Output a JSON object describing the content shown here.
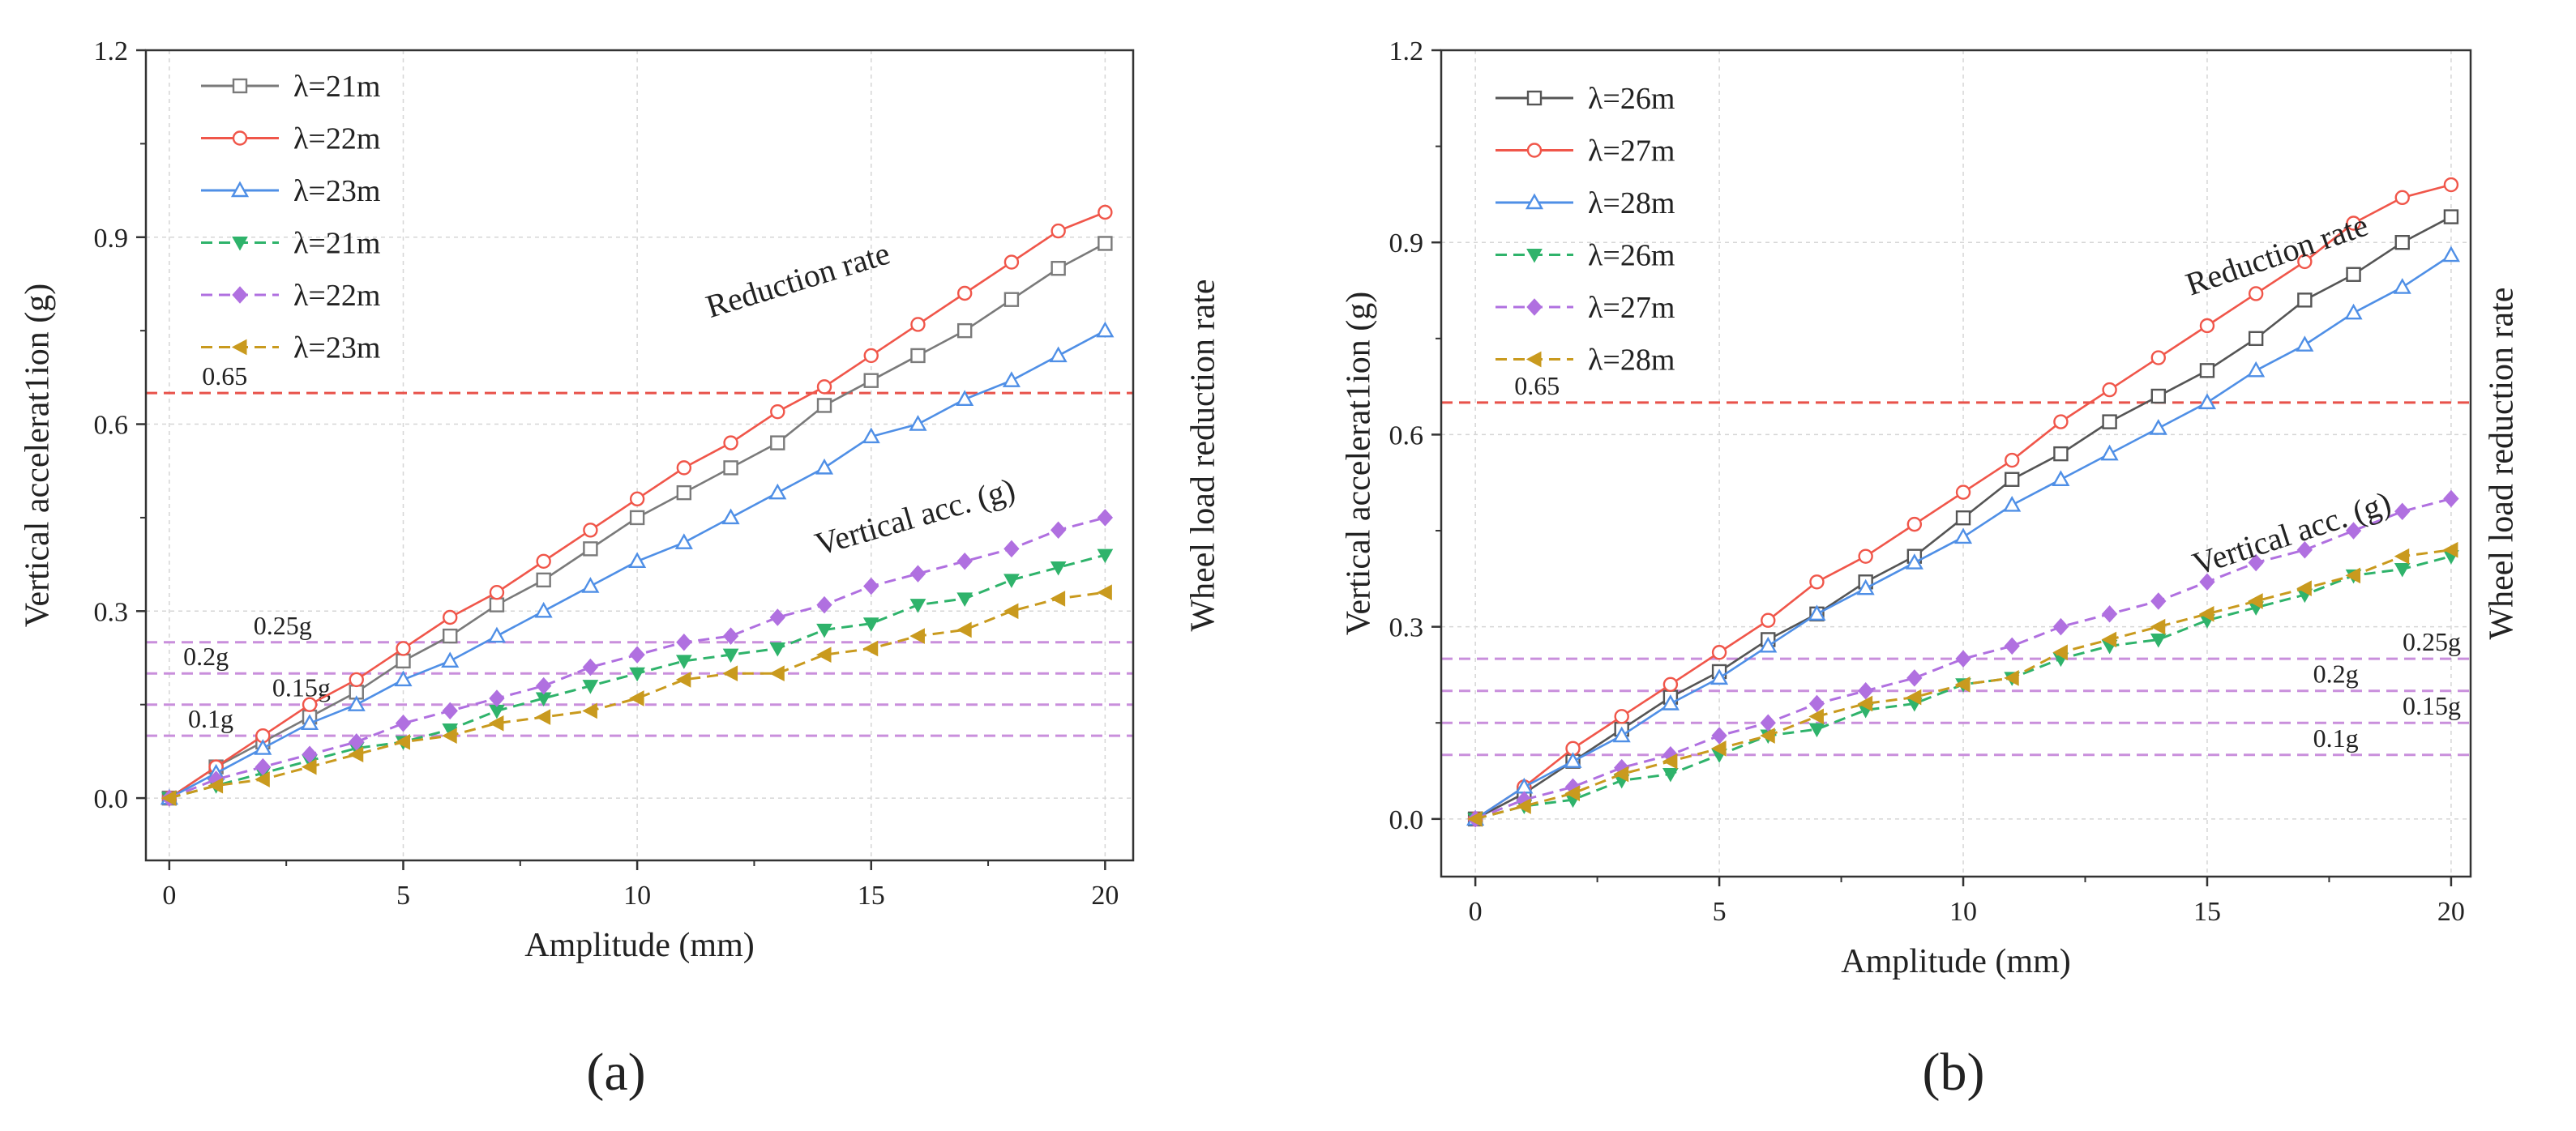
{
  "chart_data": [
    {
      "type": "line",
      "panel_label": "(a)",
      "xlabel": "Amplitude (mm)",
      "ylabel_left": "Vertical accelerat1ion (g)",
      "ylabel_right": "Wheel load reduction rate",
      "xlim": [
        -0.5,
        20.6
      ],
      "ylim": [
        -0.1,
        1.2
      ],
      "xticks": [
        "0",
        "5",
        "10",
        "15",
        "20"
      ],
      "yticks": [
        "0.0",
        "0.3",
        "0.6",
        "0.9",
        "1.2"
      ],
      "x": [
        0,
        1,
        2,
        3,
        4,
        5,
        6,
        7,
        8,
        9,
        10,
        11,
        12,
        13,
        14,
        15,
        16,
        17,
        18,
        19,
        20
      ],
      "annotations": [
        {
          "text": "Reduction rate",
          "x": 13.5,
          "y": 0.815,
          "rotate": -17
        },
        {
          "text": "Vertical acc. (g)",
          "x": 16.0,
          "y": 0.435,
          "rotate": -16
        }
      ],
      "reference_lines": [
        {
          "label": "0.65",
          "y": 0.65,
          "color": "#e8524a",
          "label_x": 0.7
        },
        {
          "label": "0.25g",
          "y": 0.25,
          "color": "#c98fdc",
          "label_x": 1.8
        },
        {
          "label": "0.2g",
          "y": 0.2,
          "color": "#c98fdc",
          "label_x": 0.3
        },
        {
          "label": "0.15g",
          "y": 0.15,
          "color": "#c98fdc",
          "label_x": 2.2
        },
        {
          "label": "0.1g",
          "y": 0.1,
          "color": "#c98fdc",
          "label_x": 0.4
        }
      ],
      "series": [
        {
          "name": "λ=21m",
          "color": "#7a7a7a",
          "dash": false,
          "marker": "square",
          "values": [
            0.0,
            0.05,
            0.09,
            0.13,
            0.17,
            0.22,
            0.26,
            0.31,
            0.35,
            0.4,
            0.45,
            0.49,
            0.53,
            0.57,
            0.63,
            0.67,
            0.71,
            0.75,
            0.8,
            0.85,
            0.89
          ]
        },
        {
          "name": "λ=22m",
          "color": "#f0564a",
          "dash": false,
          "marker": "circle",
          "values": [
            0.0,
            0.05,
            0.1,
            0.15,
            0.19,
            0.24,
            0.29,
            0.33,
            0.38,
            0.43,
            0.48,
            0.53,
            0.57,
            0.62,
            0.66,
            0.71,
            0.76,
            0.81,
            0.86,
            0.91,
            0.94
          ]
        },
        {
          "name": "λ=23m",
          "color": "#4f8fe6",
          "dash": false,
          "marker": "triangle-up",
          "values": [
            0.0,
            0.04,
            0.08,
            0.12,
            0.15,
            0.19,
            0.22,
            0.26,
            0.3,
            0.34,
            0.38,
            0.41,
            0.45,
            0.49,
            0.53,
            0.58,
            0.6,
            0.64,
            0.67,
            0.71,
            0.75
          ]
        },
        {
          "name": "λ=21m",
          "color": "#2fb36b",
          "dash": true,
          "marker": "triangle-down",
          "values": [
            0.0,
            0.02,
            0.04,
            0.06,
            0.08,
            0.09,
            0.11,
            0.14,
            0.16,
            0.18,
            0.2,
            0.22,
            0.23,
            0.24,
            0.27,
            0.28,
            0.31,
            0.32,
            0.35,
            0.37,
            0.39
          ]
        },
        {
          "name": "λ=22m",
          "color": "#b070e0",
          "dash": true,
          "marker": "diamond",
          "values": [
            0.0,
            0.03,
            0.05,
            0.07,
            0.09,
            0.12,
            0.14,
            0.16,
            0.18,
            0.21,
            0.23,
            0.25,
            0.26,
            0.29,
            0.31,
            0.34,
            0.36,
            0.38,
            0.4,
            0.43,
            0.45
          ]
        },
        {
          "name": "λ=23m",
          "color": "#c99a1e",
          "dash": true,
          "marker": "triangle-left",
          "values": [
            0.0,
            0.02,
            0.03,
            0.05,
            0.07,
            0.09,
            0.1,
            0.12,
            0.13,
            0.14,
            0.16,
            0.19,
            0.2,
            0.2,
            0.23,
            0.24,
            0.26,
            0.27,
            0.3,
            0.32,
            0.33
          ]
        }
      ]
    },
    {
      "type": "line",
      "panel_label": "(b)",
      "xlabel": "Amplitude (mm)",
      "ylabel_left": "Vertical accelerat1ion (g)",
      "ylabel_right": "Wheel load reduction rate",
      "xlim": [
        -0.7,
        20.4
      ],
      "ylim": [
        -0.09,
        1.2
      ],
      "xticks": [
        "0",
        "5",
        "10",
        "15",
        "20"
      ],
      "yticks": [
        "0.0",
        "0.3",
        "0.6",
        "0.9",
        "1.2"
      ],
      "x": [
        0,
        1,
        2,
        3,
        4,
        5,
        6,
        7,
        8,
        9,
        10,
        11,
        12,
        13,
        14,
        15,
        16,
        17,
        18,
        19,
        20
      ],
      "annotations": [
        {
          "text": "Reduction rate",
          "x": 16.5,
          "y": 0.865,
          "rotate": -19
        },
        {
          "text": "Vertical acc. (g)",
          "x": 16.8,
          "y": 0.43,
          "rotate": -18
        }
      ],
      "reference_lines": [
        {
          "label": "0.65",
          "y": 0.65,
          "color": "#e8524a",
          "label_x": 0.8,
          "anchor": "start"
        },
        {
          "label": "0.25g",
          "y": 0.25,
          "color": "#c98fdc",
          "label_x": 20.2,
          "anchor": "end"
        },
        {
          "label": "0.2g",
          "y": 0.2,
          "color": "#c98fdc",
          "label_x": 18.1,
          "anchor": "end"
        },
        {
          "label": "0.15g",
          "y": 0.15,
          "color": "#c98fdc",
          "label_x": 20.2,
          "anchor": "end"
        },
        {
          "label": "0.1g",
          "y": 0.1,
          "color": "#c98fdc",
          "label_x": 18.1,
          "anchor": "end"
        }
      ],
      "series": [
        {
          "name": "λ=26m",
          "color": "#555555",
          "dash": false,
          "marker": "square",
          "values": [
            0.0,
            0.04,
            0.09,
            0.14,
            0.19,
            0.23,
            0.28,
            0.32,
            0.37,
            0.41,
            0.47,
            0.53,
            0.57,
            0.62,
            0.66,
            0.7,
            0.75,
            0.81,
            0.85,
            0.9,
            0.94
          ]
        },
        {
          "name": "λ=27m",
          "color": "#f0564a",
          "dash": false,
          "marker": "circle",
          "values": [
            0.0,
            0.05,
            0.11,
            0.16,
            0.21,
            0.26,
            0.31,
            0.37,
            0.41,
            0.46,
            0.51,
            0.56,
            0.62,
            0.67,
            0.72,
            0.77,
            0.82,
            0.87,
            0.93,
            0.97,
            0.99
          ]
        },
        {
          "name": "λ=28m",
          "color": "#4f8fe6",
          "dash": false,
          "marker": "triangle-up",
          "values": [
            0.0,
            0.05,
            0.09,
            0.13,
            0.18,
            0.22,
            0.27,
            0.32,
            0.36,
            0.4,
            0.44,
            0.49,
            0.53,
            0.57,
            0.61,
            0.65,
            0.7,
            0.74,
            0.79,
            0.83,
            0.88
          ]
        },
        {
          "name": "λ=26m",
          "color": "#2fb36b",
          "dash": true,
          "marker": "triangle-down",
          "values": [
            0.0,
            0.02,
            0.03,
            0.06,
            0.07,
            0.1,
            0.13,
            0.14,
            0.17,
            0.18,
            0.21,
            0.22,
            0.25,
            0.27,
            0.28,
            0.31,
            0.33,
            0.35,
            0.38,
            0.39,
            0.41
          ]
        },
        {
          "name": "λ=27m",
          "color": "#b070e0",
          "dash": true,
          "marker": "diamond",
          "values": [
            0.0,
            0.03,
            0.05,
            0.08,
            0.1,
            0.13,
            0.15,
            0.18,
            0.2,
            0.22,
            0.25,
            0.27,
            0.3,
            0.32,
            0.34,
            0.37,
            0.4,
            0.42,
            0.45,
            0.48,
            0.5
          ]
        },
        {
          "name": "λ=28m",
          "color": "#c99a1e",
          "dash": true,
          "marker": "triangle-left",
          "values": [
            0.0,
            0.02,
            0.04,
            0.07,
            0.09,
            0.11,
            0.13,
            0.16,
            0.18,
            0.19,
            0.21,
            0.22,
            0.26,
            0.28,
            0.3,
            0.32,
            0.34,
            0.36,
            0.38,
            0.41,
            0.42
          ]
        }
      ]
    }
  ]
}
